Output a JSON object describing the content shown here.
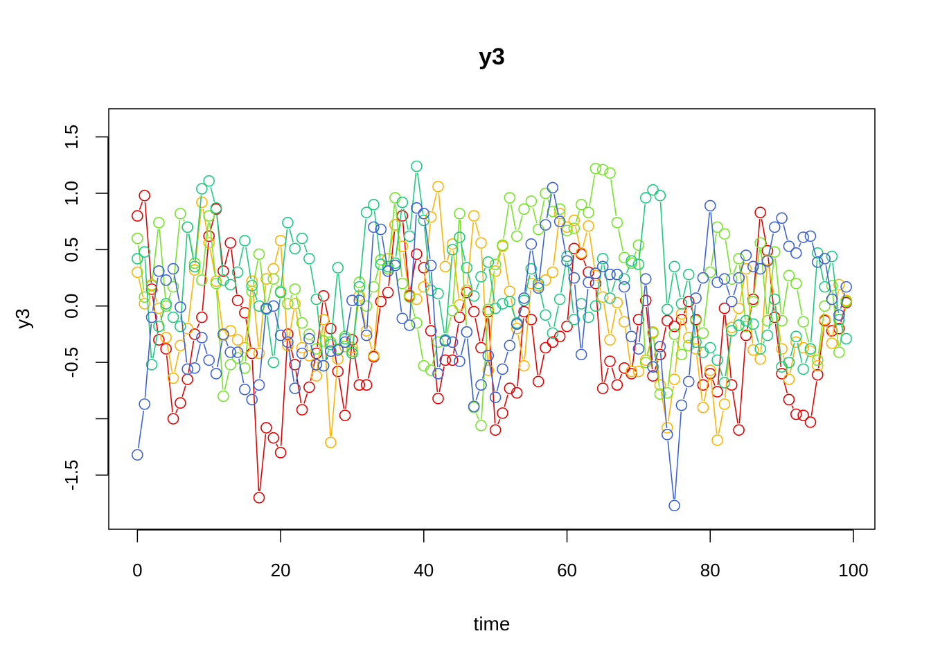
{
  "chart_data": {
    "type": "line",
    "title": "y3",
    "xlabel": "time",
    "ylabel": "y3",
    "xlim": [
      -4,
      103
    ],
    "ylim": [
      -1.98,
      1.75
    ],
    "x_ticks": [
      0,
      20,
      40,
      60,
      80,
      100
    ],
    "x_tick_labels": [
      "0",
      "20",
      "40",
      "60",
      "80",
      "100"
    ],
    "y_ticks": [
      -1.5,
      -1.0,
      -0.5,
      0.0,
      0.5,
      1.0,
      1.5
    ],
    "y_tick_labels": [
      "-1.5",
      "",
      "-0.5",
      "0.0",
      "0.5",
      "1.0",
      "1.5"
    ],
    "grid": false,
    "marker": "open-circle",
    "line_style": "connected with gaps at markers",
    "x": [
      0,
      1,
      2,
      3,
      4,
      5,
      6,
      7,
      8,
      9,
      10,
      11,
      12,
      13,
      14,
      15,
      16,
      17,
      18,
      19,
      20,
      21,
      22,
      23,
      24,
      25,
      26,
      27,
      28,
      29,
      30,
      31,
      32,
      33,
      34,
      35,
      36,
      37,
      38,
      39,
      40,
      41,
      42,
      43,
      44,
      45,
      46,
      47,
      48,
      49,
      50,
      51,
      52,
      53,
      54,
      55,
      56,
      57,
      58,
      59,
      60,
      61,
      62,
      63,
      64,
      65,
      66,
      67,
      68,
      69,
      70,
      71,
      72,
      73,
      74,
      75,
      76,
      77,
      78,
      79,
      80,
      81,
      82,
      83,
      84,
      85,
      86,
      87,
      88,
      89,
      90,
      91,
      92,
      93,
      94,
      95,
      96,
      97,
      98,
      99
    ],
    "series": [
      {
        "color": "#E60000",
        "values": [
          0.8,
          0.98,
          0.15,
          -0.3,
          -0.38,
          -1.0,
          -0.86,
          -0.65,
          -0.25,
          -0.1,
          0.62,
          0.86,
          0.31,
          0.56,
          0.05,
          -0.06,
          -0.42,
          -1.7,
          -1.08,
          -1.17,
          -1.3,
          -0.25,
          -0.52,
          -0.92,
          -0.72,
          -0.42,
          0.09,
          -0.2,
          -0.58,
          -0.97,
          -0.3,
          -0.7,
          -0.7,
          -0.45,
          0.04,
          0.12,
          0.72,
          0.8,
          0.09,
          0.46,
          0.34,
          -0.22,
          -0.82,
          -0.48,
          -0.48,
          -0.1,
          0.12,
          -0.05,
          -0.37,
          -0.05,
          -1.1,
          -0.95,
          -0.73,
          -0.77,
          -0.05,
          -0.12,
          -0.67,
          -0.37,
          -0.32,
          -0.27,
          -0.18,
          0.51,
          0.46,
          0.3,
          0.2,
          -0.73,
          -0.49,
          -0.7,
          -0.55,
          -0.6,
          -0.12,
          0.05,
          -0.62,
          -0.43,
          -0.13,
          -0.18,
          -0.12,
          0.04,
          -0.12,
          -0.7,
          -0.6,
          -0.76,
          -0.02,
          -0.7,
          -1.1,
          -0.26,
          0.06,
          0.83,
          0.49,
          -0.1,
          -0.6,
          -0.83,
          -0.96,
          -0.97,
          -1.03,
          -0.61,
          -0.13,
          -0.22,
          -0.2,
          0.03
        ]
      },
      {
        "color": "#FFB300",
        "values": [
          0.3,
          0.02,
          0.19,
          -0.02,
          -0.28,
          -0.64,
          -0.35,
          -0.2,
          0.32,
          0.92,
          0.56,
          0.22,
          -0.26,
          -0.22,
          -0.3,
          -0.37,
          0.22,
          -0.42,
          0.24,
          0.33,
          0.58,
          -0.35,
          0.02,
          -0.37,
          -0.44,
          -0.62,
          -0.12,
          -1.21,
          -0.47,
          -0.36,
          -0.37,
          0.09,
          -0.22,
          -0.44,
          0.37,
          0.42,
          0.72,
          0.53,
          0.1,
          0.06,
          0.17,
          0.79,
          1.06,
          0.35,
          0.55,
          0.01,
          0.14,
          0.8,
          0.56,
          -0.57,
          0.31,
          0.53,
          0.13,
          -0.2,
          -0.53,
          0.2,
          0.18,
          0.23,
          0.3,
          0.82,
          0.7,
          0.76,
          0.47,
          0.71,
          0.27,
          0.08,
          -0.3,
          0.03,
          -0.14,
          -0.58,
          -0.58,
          -0.48,
          -0.23,
          -0.7,
          -1.08,
          -0.65,
          -0.07,
          -0.28,
          -0.38,
          -0.9,
          -0.57,
          -1.19,
          -0.87,
          -0.19,
          -0.02,
          0.33,
          -0.39,
          -0.47,
          0.41,
          0.06,
          -0.38,
          -0.65,
          -0.32,
          -0.37,
          -0.4,
          -0.53,
          -0.12,
          -0.33,
          0.19,
          0.05
        ]
      },
      {
        "color": "#73E625",
        "values": [
          0.6,
          0.08,
          0.18,
          0.74,
          0.0,
          0.17,
          0.82,
          0.7,
          0.38,
          0.23,
          0.8,
          0.2,
          -0.8,
          -0.52,
          -0.46,
          -0.55,
          0.13,
          0.46,
          -0.02,
          0.24,
          0.13,
          0.02,
          0.15,
          -0.15,
          -0.25,
          -0.38,
          -0.31,
          -0.32,
          -0.38,
          -0.27,
          -0.4,
          0.21,
          0.0,
          0.17,
          0.41,
          0.33,
          0.96,
          0.2,
          0.08,
          -0.15,
          -0.53,
          -0.57,
          -0.32,
          -0.3,
          -0.04,
          0.82,
          -0.23,
          -0.9,
          -1.06,
          -0.03,
          0.37,
          0.54,
          0.96,
          0.62,
          0.86,
          0.93,
          0.68,
          1.0,
          0.84,
          0.86,
          0.67,
          0.69,
          0.9,
          0.83,
          1.22,
          1.21,
          1.18,
          0.74,
          0.43,
          0.38,
          0.54,
          -0.5,
          -0.24,
          -0.78,
          -0.77,
          -0.25,
          -0.43,
          -0.35,
          -0.13,
          -0.24,
          0.3,
          0.7,
          0.64,
          0.24,
          0.42,
          -0.18,
          0.04,
          0.56,
          -0.13,
          0.48,
          -0.13,
          0.27,
          0.2,
          -0.14,
          -0.38,
          -0.48,
          0.0,
          0.18,
          -0.41,
          0.04
        ]
      },
      {
        "color": "#1ACC7F",
        "values": [
          0.42,
          0.48,
          -0.52,
          -0.18,
          0.02,
          -0.1,
          -0.18,
          0.7,
          0.35,
          1.04,
          1.11,
          0.87,
          0.23,
          0.19,
          0.3,
          0.58,
          0.18,
          0.0,
          -0.03,
          -0.5,
          0.12,
          0.74,
          0.51,
          0.6,
          0.42,
          0.06,
          -0.53,
          -0.34,
          0.34,
          -0.29,
          -0.42,
          0.17,
          0.83,
          0.9,
          0.37,
          0.35,
          0.38,
          0.92,
          0.62,
          1.24,
          0.76,
          0.14,
          0.11,
          -0.3,
          0.5,
          0.61,
          0.34,
          0.09,
          0.26,
          0.39,
          -0.02,
          0.02,
          0.04,
          -0.15,
          0.05,
          0.33,
          0.2,
          -0.08,
          -0.24,
          0.06,
          0.44,
          -0.12,
          0.02,
          -0.1,
          0.0,
          0.42,
          0.07,
          0.28,
          0.24,
          0.4,
          0.37,
          0.96,
          1.03,
          0.98,
          -0.03,
          0.35,
          0.02,
          0.28,
          -0.32,
          -0.41,
          -0.37,
          -0.48,
          -0.68,
          -0.22,
          -0.17,
          -0.13,
          -0.16,
          -0.38,
          -0.26,
          0.06,
          -0.54,
          -0.5,
          -0.27,
          -0.56,
          -0.38,
          0.47,
          0.17,
          0.44,
          -0.12,
          -0.29
        ]
      },
      {
        "color": "#3D62D6",
        "values": [
          -1.32,
          -0.87,
          -0.1,
          0.31,
          0.23,
          0.33,
          -0.01,
          -0.56,
          -0.55,
          -0.28,
          -0.48,
          -0.6,
          -0.25,
          -0.41,
          -0.41,
          -0.74,
          -0.83,
          -0.7,
          -0.02,
          0.0,
          -0.26,
          -0.32,
          -0.73,
          -0.42,
          -0.29,
          -0.52,
          -0.53,
          -0.4,
          -0.39,
          -0.32,
          0.05,
          0.05,
          -0.26,
          0.7,
          0.68,
          0.31,
          0.36,
          -0.11,
          -0.17,
          0.87,
          0.82,
          0.36,
          -0.6,
          -0.31,
          -0.32,
          -0.49,
          -0.23,
          -0.89,
          -0.7,
          -0.44,
          -0.81,
          -0.56,
          -0.35,
          -0.16,
          0.07,
          0.55,
          0.16,
          0.72,
          1.05,
          0.75,
          0.4,
          0.25,
          -0.43,
          0.21,
          0.29,
          0.35,
          0.28,
          0.28,
          0.17,
          -0.27,
          -0.38,
          0.24,
          -0.54,
          -0.36,
          -1.14,
          -1.77,
          -0.88,
          -0.67,
          0.07,
          0.25,
          0.89,
          0.21,
          0.24,
          0.04,
          0.25,
          0.45,
          0.35,
          0.33,
          0.4,
          0.7,
          0.78,
          0.53,
          0.47,
          0.61,
          0.62,
          0.39,
          0.42,
          0.06,
          -0.08,
          0.17
        ]
      }
    ]
  }
}
